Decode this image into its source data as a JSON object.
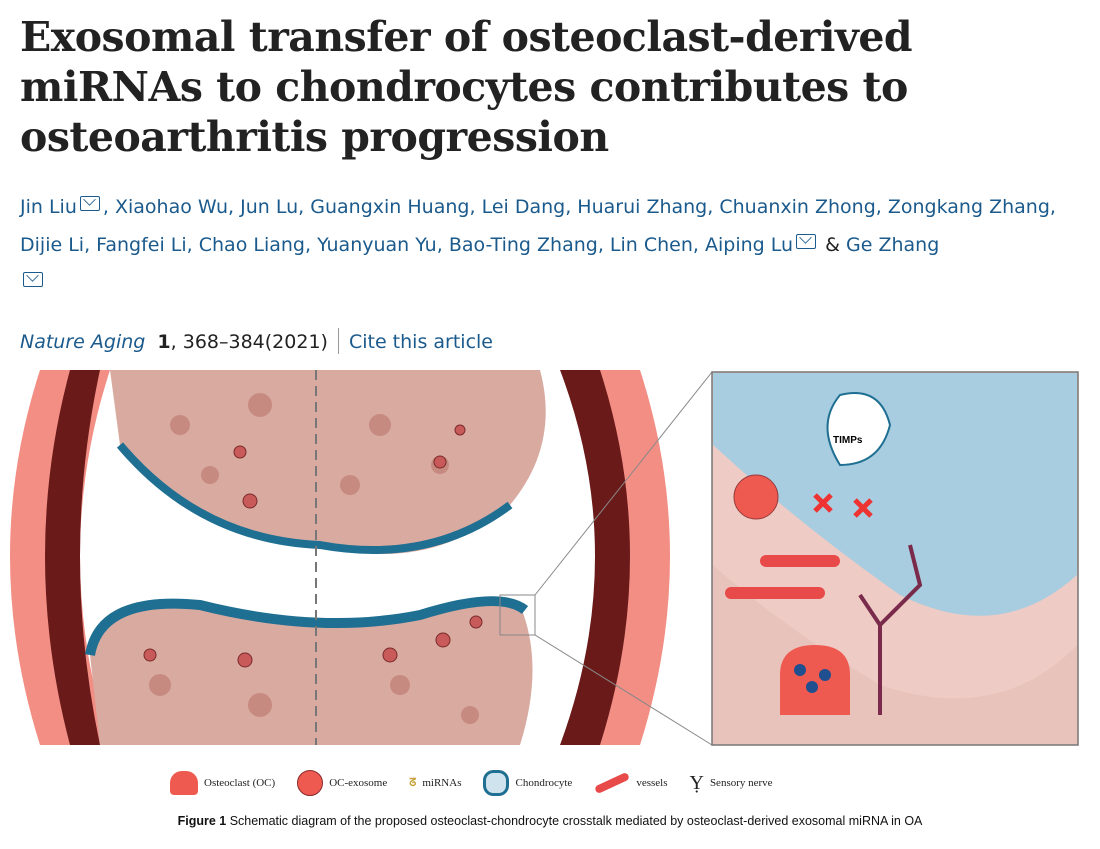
{
  "title": "Exosomal transfer of osteoclast-derived miRNAs to chondrocytes contributes to osteoarthritis progression",
  "authors": [
    "Jin Liu",
    "Xiaohao Wu",
    "Jun Lu",
    "Guangxin Huang",
    "Lei Dang",
    "Huarui Zhang",
    "Chuanxin Zhong",
    "Zongkang Zhang",
    "Dijie Li",
    "Fangfei Li",
    "Chao Liang",
    "Yuanyuan Yu",
    "Bao-Ting Zhang",
    "Lin Chen",
    "Aiping Lu",
    "Ge Zhang"
  ],
  "citation": {
    "journal": "Nature Aging",
    "volume": "1",
    "pages": ", 368–384(2021)",
    "cite_link": "Cite this article"
  },
  "figure": {
    "timps_label": "TIMPs",
    "legend": [
      "Osteoclast (OC)",
      "OC-exosome",
      "miRNAs",
      "Chondrocyte",
      "vessels",
      "Sensory nerve"
    ],
    "caption_bold": "Figure 1",
    "caption": " Schematic diagram of the proposed osteoclast-chondrocyte crosstalk mediated by osteoclast-derived exosomal miRNA in OA"
  }
}
